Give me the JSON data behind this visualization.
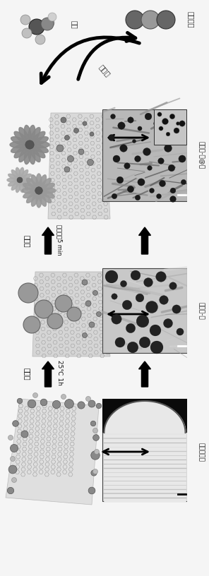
{
  "bg_color": "#f0f0f0",
  "fig_width": 2.96,
  "fig_height": 8.16,
  "dpi": 100,
  "labels": {
    "methanol": "甲醇",
    "co2": "二氧化碗",
    "electrocatalysis": "电嵔化",
    "grow_pt": "生长锃",
    "microwave_5min": "微波辐射5 min",
    "grow_pd": "生长锃",
    "grow_25c_1h": "25℃ 1h",
    "graphene_pt": "石墨烯-锃@锃",
    "graphene_pd": "石墨烯-锃",
    "oxidized_graphene": "氧化石墨烯"
  }
}
